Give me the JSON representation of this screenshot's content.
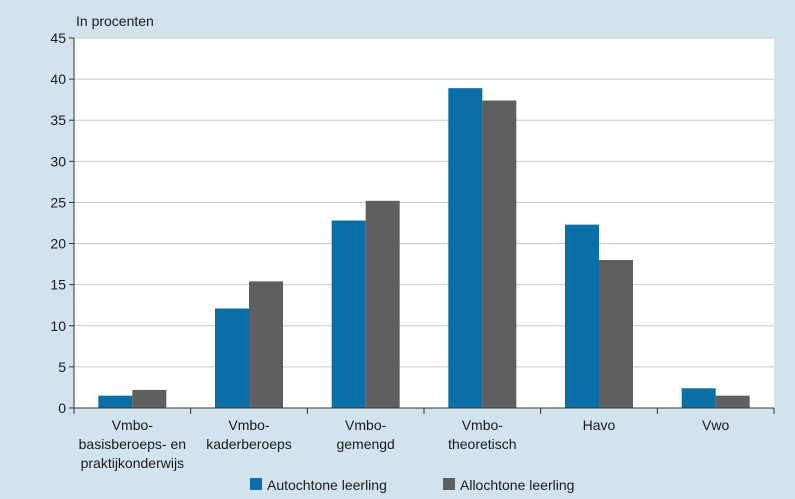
{
  "chart_data": {
    "type": "bar",
    "unit_label": "In procenten",
    "categories": [
      [
        "Vmbo-",
        "basisberoeps- en",
        "praktijkonderwijs"
      ],
      [
        "Vmbo-",
        "kaderberoeps"
      ],
      [
        "Vmbo-",
        "gemengd"
      ],
      [
        "Vmbo-",
        "theoretisch"
      ],
      [
        "Havo"
      ],
      [
        "Vwo"
      ]
    ],
    "series": [
      {
        "name": "Autochtone leerling",
        "color": "#0a6fa6",
        "values": [
          1.5,
          12.1,
          22.8,
          38.9,
          22.3,
          2.4
        ]
      },
      {
        "name": "Allochtone leerling",
        "color": "#5f5f5f",
        "values": [
          2.2,
          15.4,
          25.2,
          37.4,
          18.0,
          1.5
        ]
      }
    ],
    "ylim": [
      0,
      45
    ],
    "yticks": [
      "0",
      "5",
      "10",
      "15",
      "20",
      "25",
      "30",
      "35",
      "40",
      "45"
    ],
    "grid": true,
    "legend_position": "bottom-center"
  }
}
